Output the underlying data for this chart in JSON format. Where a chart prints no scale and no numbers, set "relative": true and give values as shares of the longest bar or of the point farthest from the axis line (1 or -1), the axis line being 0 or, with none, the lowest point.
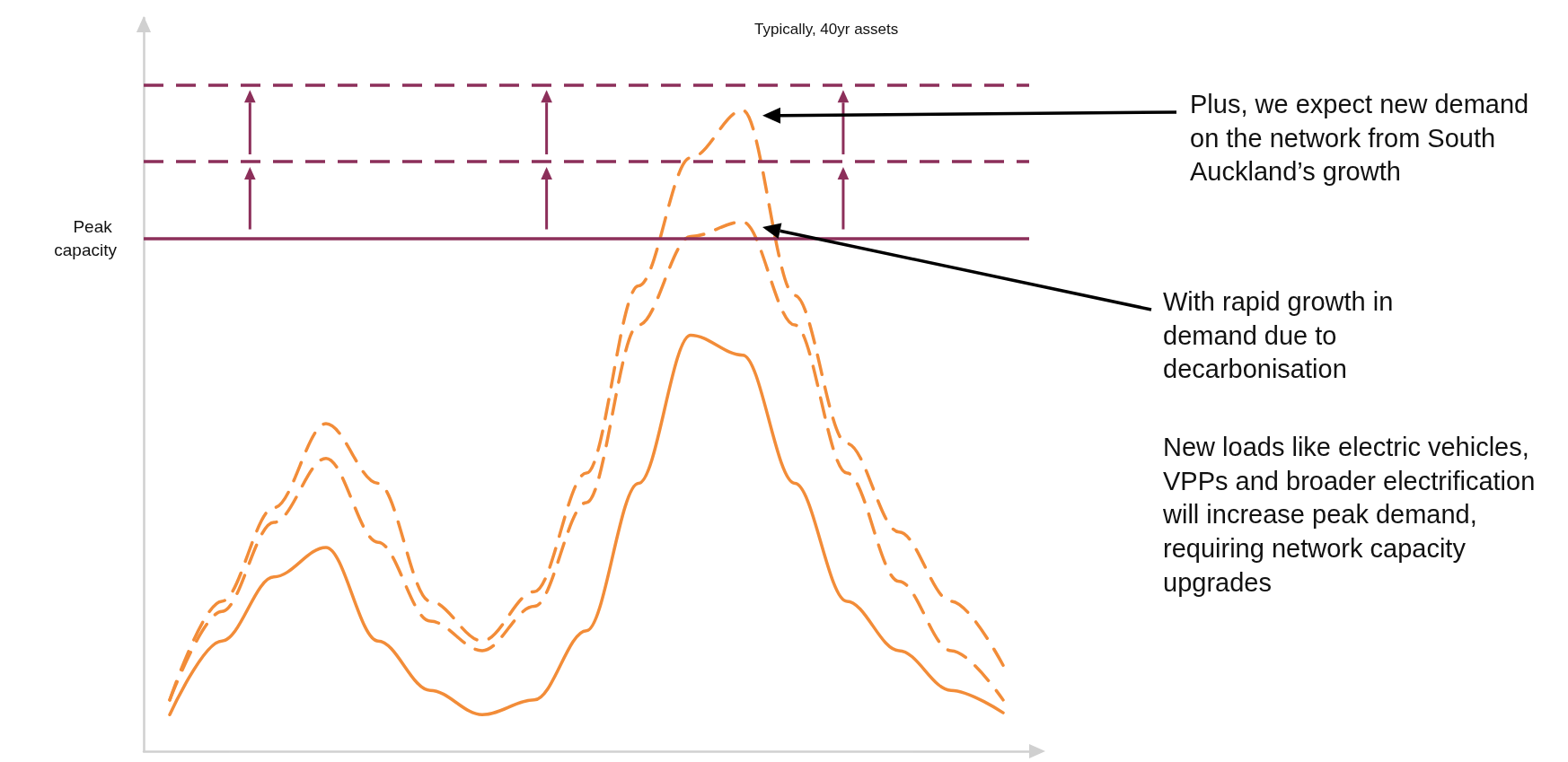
{
  "chart_data": {
    "type": "line",
    "relative": true,
    "categories": [
      null,
      null,
      null,
      null,
      null,
      null,
      null,
      null,
      null,
      null,
      null,
      null,
      null,
      null,
      null,
      null,
      null
    ],
    "series": [
      {
        "color": "#f28c38",
        "line_style": "solid",
        "values": [
          0.057,
          0.172,
          0.272,
          0.318,
          0.172,
          0.095,
          0.057,
          0.08,
          0.188,
          0.418,
          0.649,
          0.618,
          0.418,
          0.234,
          0.157,
          0.095,
          0.06
        ]
      },
      {
        "color": "#f28c38",
        "line_style": "dashed",
        "values": [
          0.08,
          0.218,
          0.357,
          0.457,
          0.326,
          0.203,
          0.157,
          0.226,
          0.388,
          0.665,
          0.803,
          0.826,
          0.665,
          0.434,
          0.265,
          0.157,
          0.08
        ]
      },
      {
        "color": "#f28c38",
        "line_style": "dashed",
        "values": [
          0.08,
          0.234,
          0.38,
          0.511,
          0.418,
          0.234,
          0.172,
          0.249,
          0.434,
          0.726,
          0.926,
          1,
          0.711,
          0.48,
          0.342,
          0.234,
          0.134
        ]
      }
    ],
    "ref_lines": [
      {
        "axis": "y",
        "value": 0.803,
        "label": "Peak capacity",
        "color": "#8c2f5a",
        "line_style": "solid"
      },
      {
        "axis": "y",
        "value": 0.92,
        "color": "#8c2f5a",
        "line_style": "dashed"
      },
      {
        "axis": "y",
        "value": 1.04,
        "color": "#8c2f5a",
        "line_style": "dashed"
      }
    ],
    "annotations": [
      "Typically, 40yr assets",
      "Plus, we expect new demand on the network from South Auckland’s growth",
      "With rapid growth in demand due to decarbonisation",
      "New loads like electric vehicles, VPPs and broader electrification will increase peak demand, requiring network capacity upgrades"
    ],
    "marker": "none",
    "grid": false
  }
}
